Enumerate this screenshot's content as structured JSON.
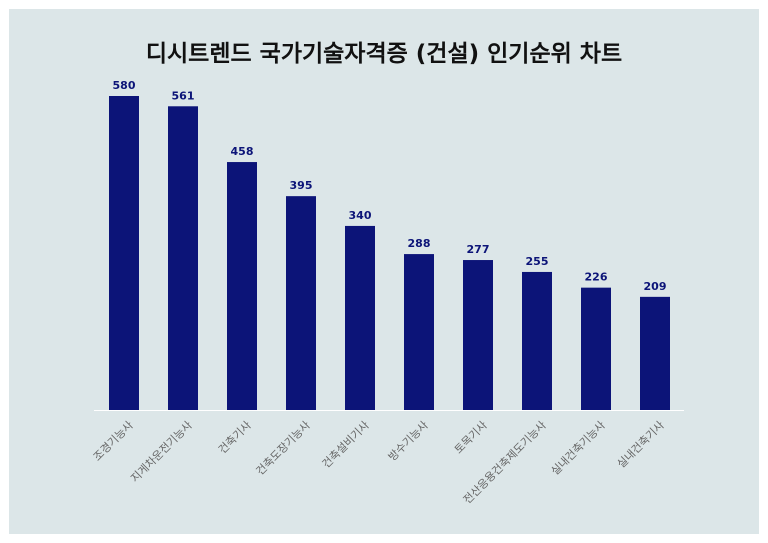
{
  "chart_data": {
    "type": "bar",
    "title": "디시트렌드 국가기술자격증 (건설) 인기순위 차트",
    "categories": [
      "조경기능사",
      "지게차운전기능사",
      "건축기사",
      "건축도장기능사",
      "건축설비기사",
      "방수기능사",
      "토목기사",
      "전산응용건축제도기능사",
      "실내건축기능사",
      "실내건축기사"
    ],
    "values": [
      580,
      561,
      458,
      395,
      340,
      288,
      277,
      255,
      226,
      209
    ],
    "xlabel": "",
    "ylabel": "",
    "ylim": [
      0,
      600
    ],
    "grid": false,
    "legend": "none",
    "colors": {
      "bar": "#0c1478",
      "background": "#dce6e8"
    }
  }
}
